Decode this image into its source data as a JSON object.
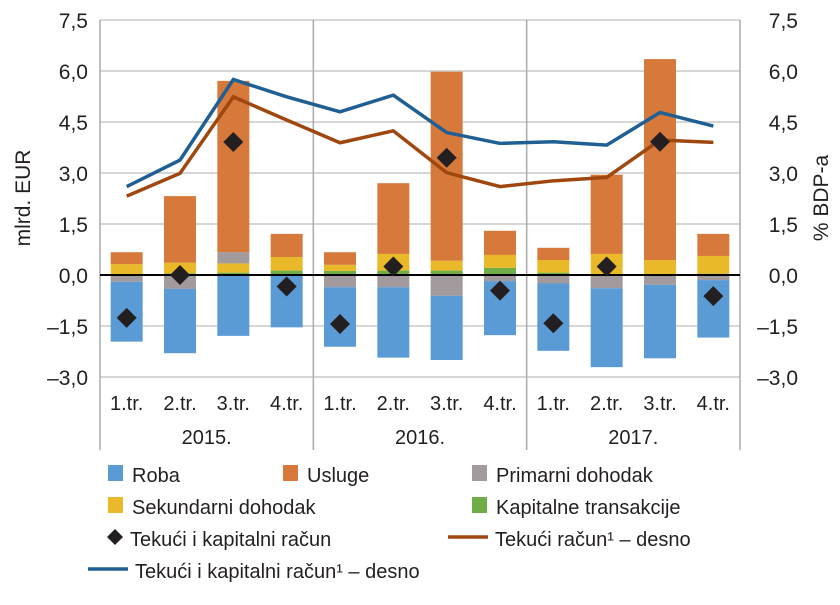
{
  "chart_data": {
    "type": "bar",
    "subtype": "stacked bar with line overlay",
    "ylabel_left": "mlrd. EUR",
    "ylabel_right": "% BDP-a",
    "ylim": [
      -3.0,
      7.5
    ],
    "y_ticks": [
      "7,5",
      "6,0",
      "4,5",
      "3,0",
      "1,5",
      "0,0",
      "–1,5",
      "–3,0"
    ],
    "y_tick_values": [
      7.5,
      6.0,
      4.5,
      3.0,
      1.5,
      0.0,
      -1.5,
      -3.0
    ],
    "grid": true,
    "categories": [
      "1.tr.",
      "2.tr.",
      "3.tr.",
      "4.tr.",
      "1.tr.",
      "2.tr.",
      "3.tr.",
      "4.tr.",
      "1.tr.",
      "2.tr.",
      "3.tr.",
      "4.tr."
    ],
    "years": [
      "2015.",
      "2016.",
      "2017."
    ],
    "colors": {
      "roba": "#5b9bd5",
      "usluge": "#d6793b",
      "primarni": "#a39a9d",
      "sekundarni": "#e9b92a",
      "kapitalne": "#70ad47",
      "diamond": "#231f20",
      "tekuci_line": "#a0470f",
      "tk_line": "#1f5f93"
    },
    "series": [
      {
        "key": "roba",
        "name": "Roba",
        "values": [
          -1.76,
          -1.89,
          -1.79,
          -1.54,
          -1.75,
          -2.07,
          -1.89,
          -1.59,
          -1.98,
          -2.32,
          -2.16,
          -1.69
        ]
      },
      {
        "key": "usluge",
        "name": "Usluge",
        "values": [
          0.35,
          1.96,
          5.04,
          0.68,
          0.37,
          2.08,
          5.56,
          0.71,
          0.36,
          2.33,
          5.91,
          0.65
        ]
      },
      {
        "key": "primarni",
        "name": "Primarni dohodak",
        "values": [
          -0.2,
          -0.41,
          0.33,
          0.0,
          -0.36,
          -0.36,
          -0.61,
          -0.18,
          -0.25,
          -0.39,
          -0.29,
          -0.15
        ]
      },
      {
        "key": "sekundarni",
        "name": "Sekundarni dohodak",
        "values": [
          0.32,
          0.31,
          0.27,
          0.4,
          0.18,
          0.49,
          0.29,
          0.38,
          0.37,
          0.61,
          0.41,
          0.52
        ]
      },
      {
        "key": "kapitalne",
        "name": "Kapitalne transakcije",
        "values": [
          0.0,
          0.05,
          0.07,
          0.13,
          0.12,
          0.13,
          0.13,
          0.21,
          0.07,
          0.01,
          0.03,
          0.04
        ]
      },
      {
        "key": "diamond",
        "name": "Tekući i kapitalni račun",
        "type": "marker",
        "values": [
          -1.26,
          0.0,
          3.91,
          -0.34,
          -1.44,
          0.25,
          3.45,
          -0.46,
          -1.42,
          0.25,
          3.92,
          -0.62
        ]
      },
      {
        "key": "tekuci_line",
        "name": "Tekući račun¹ – desno",
        "type": "line",
        "axis": "right",
        "values": [
          2.32,
          2.99,
          5.24,
          4.56,
          3.89,
          4.24,
          3.01,
          2.6,
          2.77,
          2.87,
          3.97,
          3.9
        ]
      },
      {
        "key": "tk_line",
        "name": "Tekući i kapitalni račun¹ – desno",
        "type": "line",
        "axis": "right",
        "values": [
          2.6,
          3.38,
          5.75,
          5.24,
          4.8,
          5.29,
          4.19,
          3.87,
          3.92,
          3.82,
          4.78,
          4.38
        ]
      }
    ]
  }
}
